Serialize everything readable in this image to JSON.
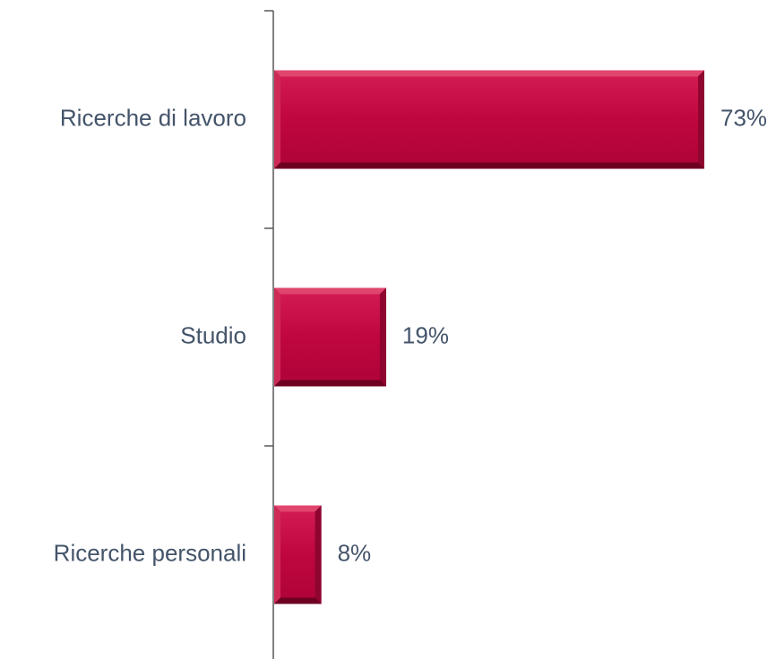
{
  "chart_data": {
    "type": "bar",
    "orientation": "horizontal",
    "categories": [
      "Ricerche di lavoro",
      "Studio",
      "Ricerche personali"
    ],
    "values": [
      73,
      19,
      8
    ],
    "value_labels": [
      "73%",
      "19%",
      "8%"
    ],
    "xlim": [
      0,
      73
    ],
    "grid": false,
    "legend": "none",
    "colors": {
      "bar": "#C0063F",
      "bar_dark": "#7A0026",
      "bar_light": "#E0456E",
      "axis": "#595959",
      "text": "#44546A"
    }
  }
}
